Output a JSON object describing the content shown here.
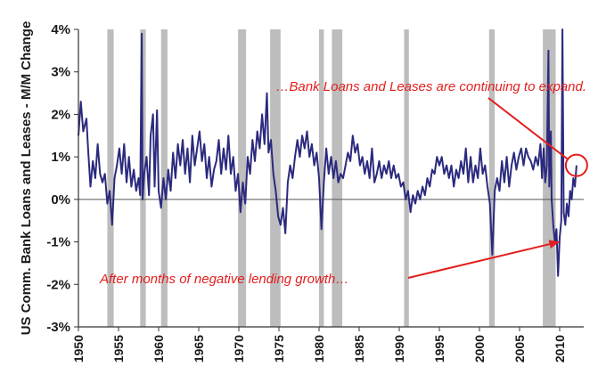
{
  "chart_data": {
    "type": "line",
    "ylabel": "US Comm. Bank Loans and Leases - M/M Change",
    "xlabel": "",
    "xlim": [
      1950,
      2013
    ],
    "ylim": [
      -3,
      4
    ],
    "y_ticks": [
      "4%",
      "3%",
      "2%",
      "1%",
      "0%",
      "-1%",
      "-2%",
      "-3%"
    ],
    "y_tick_values": [
      4,
      3,
      2,
      1,
      0,
      -1,
      -2,
      -3
    ],
    "x_ticks": [
      "1950",
      "1955",
      "1960",
      "1965",
      "1970",
      "1975",
      "1980",
      "1985",
      "1990",
      "1995",
      "2000",
      "2005",
      "2010"
    ],
    "x_tick_values": [
      1950,
      1955,
      1960,
      1965,
      1970,
      1975,
      1980,
      1985,
      1990,
      1995,
      2000,
      2005,
      2010
    ],
    "recession_shading_color": "#bdbdbd",
    "recessions": [
      [
        1953.6,
        1954.4
      ],
      [
        1957.7,
        1958.4
      ],
      [
        1960.3,
        1961.1
      ],
      [
        1969.9,
        1970.9
      ],
      [
        1973.9,
        1975.2
      ],
      [
        1980.0,
        1980.6
      ],
      [
        1981.6,
        1982.9
      ],
      [
        1990.6,
        1991.2
      ],
      [
        2001.2,
        2001.9
      ],
      [
        2007.9,
        2009.5
      ]
    ],
    "series": [
      {
        "color": "#2b2a7e",
        "points": [
          [
            1950.0,
            1.5
          ],
          [
            1950.3,
            2.3
          ],
          [
            1950.6,
            1.6
          ],
          [
            1951.0,
            1.9
          ],
          [
            1951.2,
            1.2
          ],
          [
            1951.5,
            0.3
          ],
          [
            1951.8,
            0.9
          ],
          [
            1952.1,
            0.5
          ],
          [
            1952.4,
            1.3
          ],
          [
            1952.7,
            0.6
          ],
          [
            1953.0,
            0.4
          ],
          [
            1953.3,
            0.6
          ],
          [
            1953.6,
            -0.1
          ],
          [
            1953.9,
            0.2
          ],
          [
            1954.2,
            -0.6
          ],
          [
            1954.5,
            0.5
          ],
          [
            1954.8,
            0.8
          ],
          [
            1955.1,
            1.2
          ],
          [
            1955.4,
            0.6
          ],
          [
            1955.7,
            1.3
          ],
          [
            1956.0,
            0.4
          ],
          [
            1956.3,
            1.0
          ],
          [
            1956.6,
            0.3
          ],
          [
            1956.9,
            0.7
          ],
          [
            1957.2,
            0.2
          ],
          [
            1957.5,
            0.5
          ],
          [
            1957.7,
            0.1
          ],
          [
            1957.9,
            3.9
          ],
          [
            1958.0,
            0.0
          ],
          [
            1958.2,
            0.6
          ],
          [
            1958.5,
            1.0
          ],
          [
            1958.8,
            0.1
          ],
          [
            1959.0,
            1.5
          ],
          [
            1959.3,
            2.0
          ],
          [
            1959.5,
            0.3
          ],
          [
            1959.8,
            2.1
          ],
          [
            1960.0,
            0.2
          ],
          [
            1960.3,
            -0.2
          ],
          [
            1960.6,
            0.5
          ],
          [
            1960.9,
            0.0
          ],
          [
            1961.2,
            0.7
          ],
          [
            1961.5,
            0.2
          ],
          [
            1961.8,
            1.1
          ],
          [
            1962.1,
            0.5
          ],
          [
            1962.4,
            1.3
          ],
          [
            1962.7,
            0.8
          ],
          [
            1963.0,
            1.4
          ],
          [
            1963.3,
            0.6
          ],
          [
            1963.6,
            1.2
          ],
          [
            1963.9,
            0.4
          ],
          [
            1964.2,
            1.5
          ],
          [
            1964.5,
            0.8
          ],
          [
            1964.8,
            1.2
          ],
          [
            1965.1,
            1.6
          ],
          [
            1965.4,
            0.9
          ],
          [
            1965.7,
            1.3
          ],
          [
            1966.0,
            0.5
          ],
          [
            1966.3,
            1.0
          ],
          [
            1966.6,
            0.3
          ],
          [
            1966.9,
            0.7
          ],
          [
            1967.2,
            0.9
          ],
          [
            1967.5,
            1.4
          ],
          [
            1967.8,
            0.6
          ],
          [
            1968.1,
            1.2
          ],
          [
            1968.4,
            0.7
          ],
          [
            1968.7,
            1.5
          ],
          [
            1969.0,
            0.6
          ],
          [
            1969.3,
            1.0
          ],
          [
            1969.6,
            0.2
          ],
          [
            1969.9,
            0.6
          ],
          [
            1970.2,
            -0.3
          ],
          [
            1970.5,
            0.4
          ],
          [
            1970.8,
            -0.1
          ],
          [
            1971.1,
            1.0
          ],
          [
            1971.4,
            0.6
          ],
          [
            1971.7,
            1.4
          ],
          [
            1972.0,
            0.9
          ],
          [
            1972.3,
            1.6
          ],
          [
            1972.6,
            1.2
          ],
          [
            1972.9,
            2.0
          ],
          [
            1973.2,
            1.3
          ],
          [
            1973.5,
            2.5
          ],
          [
            1973.7,
            1.1
          ],
          [
            1974.0,
            1.4
          ],
          [
            1974.3,
            0.6
          ],
          [
            1974.6,
            0.2
          ],
          [
            1974.9,
            -0.4
          ],
          [
            1975.2,
            -0.6
          ],
          [
            1975.5,
            -0.2
          ],
          [
            1975.8,
            -0.8
          ],
          [
            1976.1,
            0.4
          ],
          [
            1976.4,
            0.8
          ],
          [
            1976.7,
            0.5
          ],
          [
            1977.0,
            1.0
          ],
          [
            1977.3,
            1.4
          ],
          [
            1977.6,
            1.0
          ],
          [
            1977.9,
            1.5
          ],
          [
            1978.2,
            1.2
          ],
          [
            1978.5,
            1.6
          ],
          [
            1978.8,
            1.0
          ],
          [
            1979.1,
            1.3
          ],
          [
            1979.4,
            0.8
          ],
          [
            1979.7,
            1.1
          ],
          [
            1980.0,
            0.5
          ],
          [
            1980.3,
            -0.7
          ],
          [
            1980.6,
            0.4
          ],
          [
            1980.9,
            1.2
          ],
          [
            1981.2,
            0.6
          ],
          [
            1981.5,
            1.0
          ],
          [
            1981.8,
            0.5
          ],
          [
            1982.1,
            0.9
          ],
          [
            1982.4,
            0.4
          ],
          [
            1982.7,
            0.6
          ],
          [
            1983.0,
            0.5
          ],
          [
            1983.3,
            0.8
          ],
          [
            1983.6,
            1.1
          ],
          [
            1983.9,
            0.9
          ],
          [
            1984.2,
            1.5
          ],
          [
            1984.5,
            1.1
          ],
          [
            1984.8,
            1.3
          ],
          [
            1985.1,
            0.8
          ],
          [
            1985.4,
            1.0
          ],
          [
            1985.7,
            0.6
          ],
          [
            1986.0,
            0.9
          ],
          [
            1986.3,
            0.5
          ],
          [
            1986.6,
            1.2
          ],
          [
            1986.9,
            0.4
          ],
          [
            1987.2,
            0.6
          ],
          [
            1987.5,
            0.9
          ],
          [
            1987.8,
            0.5
          ],
          [
            1988.1,
            0.8
          ],
          [
            1988.4,
            0.6
          ],
          [
            1988.7,
            0.9
          ],
          [
            1989.0,
            0.5
          ],
          [
            1989.3,
            0.8
          ],
          [
            1989.6,
            0.5
          ],
          [
            1989.9,
            0.6
          ],
          [
            1990.2,
            0.3
          ],
          [
            1990.5,
            0.4
          ],
          [
            1990.8,
            0.0
          ],
          [
            1991.1,
            0.2
          ],
          [
            1991.4,
            -0.3
          ],
          [
            1991.7,
            0.1
          ],
          [
            1992.0,
            -0.1
          ],
          [
            1992.3,
            0.2
          ],
          [
            1992.6,
            0.0
          ],
          [
            1992.9,
            0.3
          ],
          [
            1993.2,
            0.1
          ],
          [
            1993.5,
            0.5
          ],
          [
            1993.8,
            0.3
          ],
          [
            1994.1,
            0.7
          ],
          [
            1994.4,
            0.6
          ],
          [
            1994.7,
            1.0
          ],
          [
            1995.0,
            0.8
          ],
          [
            1995.3,
            1.0
          ],
          [
            1995.6,
            0.6
          ],
          [
            1995.9,
            0.8
          ],
          [
            1996.2,
            0.5
          ],
          [
            1996.5,
            0.8
          ],
          [
            1996.8,
            0.3
          ],
          [
            1997.1,
            0.7
          ],
          [
            1997.4,
            0.5
          ],
          [
            1997.7,
            0.9
          ],
          [
            1998.0,
            0.6
          ],
          [
            1998.3,
            1.2
          ],
          [
            1998.6,
            0.4
          ],
          [
            1998.9,
            1.0
          ],
          [
            1999.2,
            0.4
          ],
          [
            1999.5,
            0.8
          ],
          [
            1999.8,
            0.5
          ],
          [
            2000.1,
            1.2
          ],
          [
            2000.4,
            0.6
          ],
          [
            2000.7,
            0.8
          ],
          [
            2001.0,
            0.3
          ],
          [
            2001.3,
            -0.1
          ],
          [
            2001.6,
            -1.3
          ],
          [
            2001.9,
            0.2
          ],
          [
            2002.2,
            0.5
          ],
          [
            2002.5,
            0.2
          ],
          [
            2002.8,
            0.9
          ],
          [
            2003.1,
            0.4
          ],
          [
            2003.4,
            1.0
          ],
          [
            2003.7,
            0.3
          ],
          [
            2004.0,
            0.8
          ],
          [
            2004.3,
            1.1
          ],
          [
            2004.6,
            0.7
          ],
          [
            2004.9,
            1.0
          ],
          [
            2005.2,
            1.2
          ],
          [
            2005.5,
            0.8
          ],
          [
            2005.8,
            1.2
          ],
          [
            2006.1,
            1.0
          ],
          [
            2006.4,
            0.9
          ],
          [
            2006.7,
            0.7
          ],
          [
            2007.0,
            1.0
          ],
          [
            2007.3,
            0.8
          ],
          [
            2007.6,
            1.3
          ],
          [
            2007.8,
            0.5
          ],
          [
            2008.0,
            1.2
          ],
          [
            2008.2,
            0.4
          ],
          [
            2008.4,
            0.8
          ],
          [
            2008.6,
            3.5
          ],
          [
            2008.7,
            0.3
          ],
          [
            2008.9,
            1.6
          ],
          [
            2009.0,
            0.0
          ],
          [
            2009.2,
            -0.6
          ],
          [
            2009.4,
            -1.0
          ],
          [
            2009.6,
            -0.7
          ],
          [
            2009.8,
            -1.8
          ],
          [
            2010.0,
            -0.9
          ],
          [
            2010.2,
            -0.5
          ],
          [
            2010.35,
            4.0
          ],
          [
            2010.5,
            -0.3
          ],
          [
            2010.7,
            -0.6
          ],
          [
            2010.9,
            -0.1
          ],
          [
            2011.1,
            -0.4
          ],
          [
            2011.3,
            0.2
          ],
          [
            2011.5,
            0.0
          ],
          [
            2011.7,
            0.5
          ],
          [
            2011.9,
            0.3
          ],
          [
            2012.1,
            0.8
          ]
        ]
      }
    ],
    "annotations": [
      {
        "text": "…Bank Loans and Leases are continuing to expand.",
        "target": [
          2012.1,
          0.8
        ],
        "color": "#e41e1e"
      },
      {
        "text": "After months of negative lending growth…",
        "target": [
          2009.6,
          -1.0
        ],
        "color": "#e41e1e"
      }
    ]
  }
}
